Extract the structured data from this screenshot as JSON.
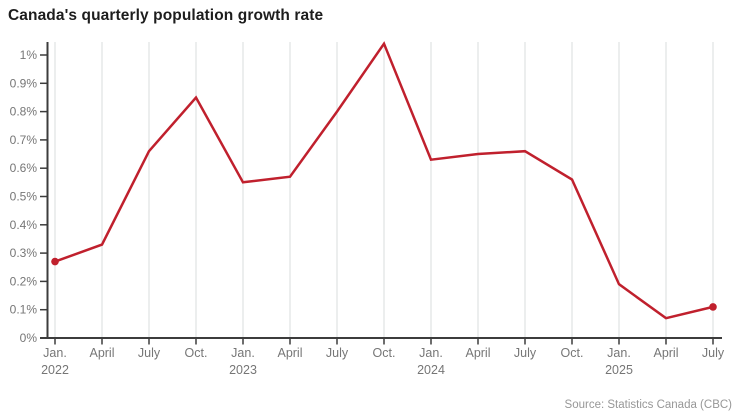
{
  "page": {
    "title": "Canada's quarterly population growth rate",
    "source": "Source: Statistics Canada (CBC)"
  },
  "chart_data": {
    "type": "line",
    "title": "Canada's quarterly population growth rate",
    "xlabel": "",
    "ylabel": "",
    "unit": "%",
    "x": [
      "Jan. 2022",
      "April 2022",
      "July 2022",
      "Oct. 2022",
      "Jan. 2023",
      "April 2023",
      "July 2023",
      "Oct. 2023",
      "Jan. 2024",
      "April 2024",
      "July 2024",
      "Oct. 2024",
      "Jan. 2025",
      "April 2025",
      "July 2025"
    ],
    "tick_labels": [
      "Jan.",
      "April",
      "July",
      "Oct.",
      "Jan.",
      "April",
      "July",
      "Oct.",
      "Jan.",
      "April",
      "July",
      "Oct.",
      "Jan.",
      "April",
      "July"
    ],
    "year_rows": [
      {
        "index": 0,
        "year": "2022"
      },
      {
        "index": 4,
        "year": "2023"
      },
      {
        "index": 8,
        "year": "2024"
      },
      {
        "index": 12,
        "year": "2025"
      }
    ],
    "values": [
      0.27,
      0.33,
      0.66,
      0.85,
      0.55,
      0.57,
      0.8,
      1.04,
      0.63,
      0.65,
      0.66,
      0.56,
      0.19,
      0.07,
      0.11
    ],
    "y_ticks": [
      "0%",
      "0.1%",
      "0.2%",
      "0.3%",
      "0.4%",
      "0.5%",
      "0.6%",
      "0.7%",
      "0.8%",
      "0.9%",
      "1%"
    ],
    "y_tick_values": [
      0,
      0.1,
      0.2,
      0.3,
      0.4,
      0.5,
      0.6,
      0.7,
      0.8,
      0.9,
      1.0
    ],
    "ylim": [
      0,
      1.05
    ],
    "grid": "vertical-only",
    "legend": "none",
    "marker_indices": [
      0,
      14
    ],
    "colors": {
      "line": "#c0202d",
      "marker": "#c0202d",
      "axis": "#3c3c3c",
      "gridline": "#d8dddd",
      "tick_text": "#767676",
      "title_text": "#1d1d1d",
      "source_text": "#979797"
    }
  }
}
